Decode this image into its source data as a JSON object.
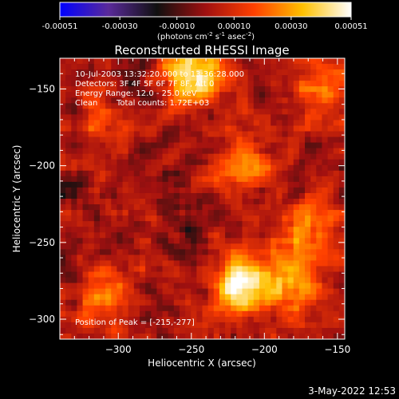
{
  "chart_data": {
    "type": "heatmap",
    "title": "Reconstructed RHESSI Image",
    "xlabel": "Heliocentric X (arcsec)",
    "ylabel": "Heliocentric Y (arcsec)",
    "xlim": [
      -340,
      -145
    ],
    "ylim": [
      -313,
      -130
    ],
    "xticks": [
      -300,
      -250,
      -200,
      -150
    ],
    "yticks": [
      -150,
      -200,
      -250,
      -300
    ],
    "colorbar": {
      "min": -0.00051,
      "max": 0.00051,
      "ticks": [
        "-0.00051",
        "-0.00030",
        "-0.00010",
        "0.00010",
        "0.00030",
        "0.00051"
      ],
      "label_parts": [
        "(photons cm",
        "-2",
        " s",
        "-1",
        " asec",
        "-2",
        ")"
      ],
      "colors": [
        "#0000ff",
        "#5a2a9a",
        "#101010",
        "#a01010",
        "#ff4000",
        "#ffc000",
        "#ffffff"
      ]
    },
    "annotations": {
      "time_range": "10-Jul-2003 13:32:20.000 to 13:36:28.000",
      "detectors": "Detectors: 3F 4F 5F 6F 7F 8F, Att 0",
      "energy": "Energy Range: 12.0 - 25.0 keV",
      "method": "Clean",
      "counts": "Total counts: 1.72E+03",
      "peak": "Position of Peak = [-215,-277]"
    },
    "peak_position": [
      -215,
      -277
    ],
    "bright_sources": [
      {
        "x": -215,
        "y": -277,
        "value": 0.00051
      },
      {
        "x": -248,
        "y": -140,
        "value": 0.00045
      },
      {
        "x": -213,
        "y": -198,
        "value": 0.00028
      },
      {
        "x": -180,
        "y": -277,
        "value": 0.0003
      },
      {
        "x": -160,
        "y": -150,
        "value": 0.00022
      },
      {
        "x": -310,
        "y": -170,
        "value": 0.00015
      },
      {
        "x": -308,
        "y": -285,
        "value": 0.0002
      },
      {
        "x": -170,
        "y": -240,
        "value": 0.00025
      }
    ]
  },
  "footer": {
    "timestamp": "3-May-2022 12:53"
  }
}
